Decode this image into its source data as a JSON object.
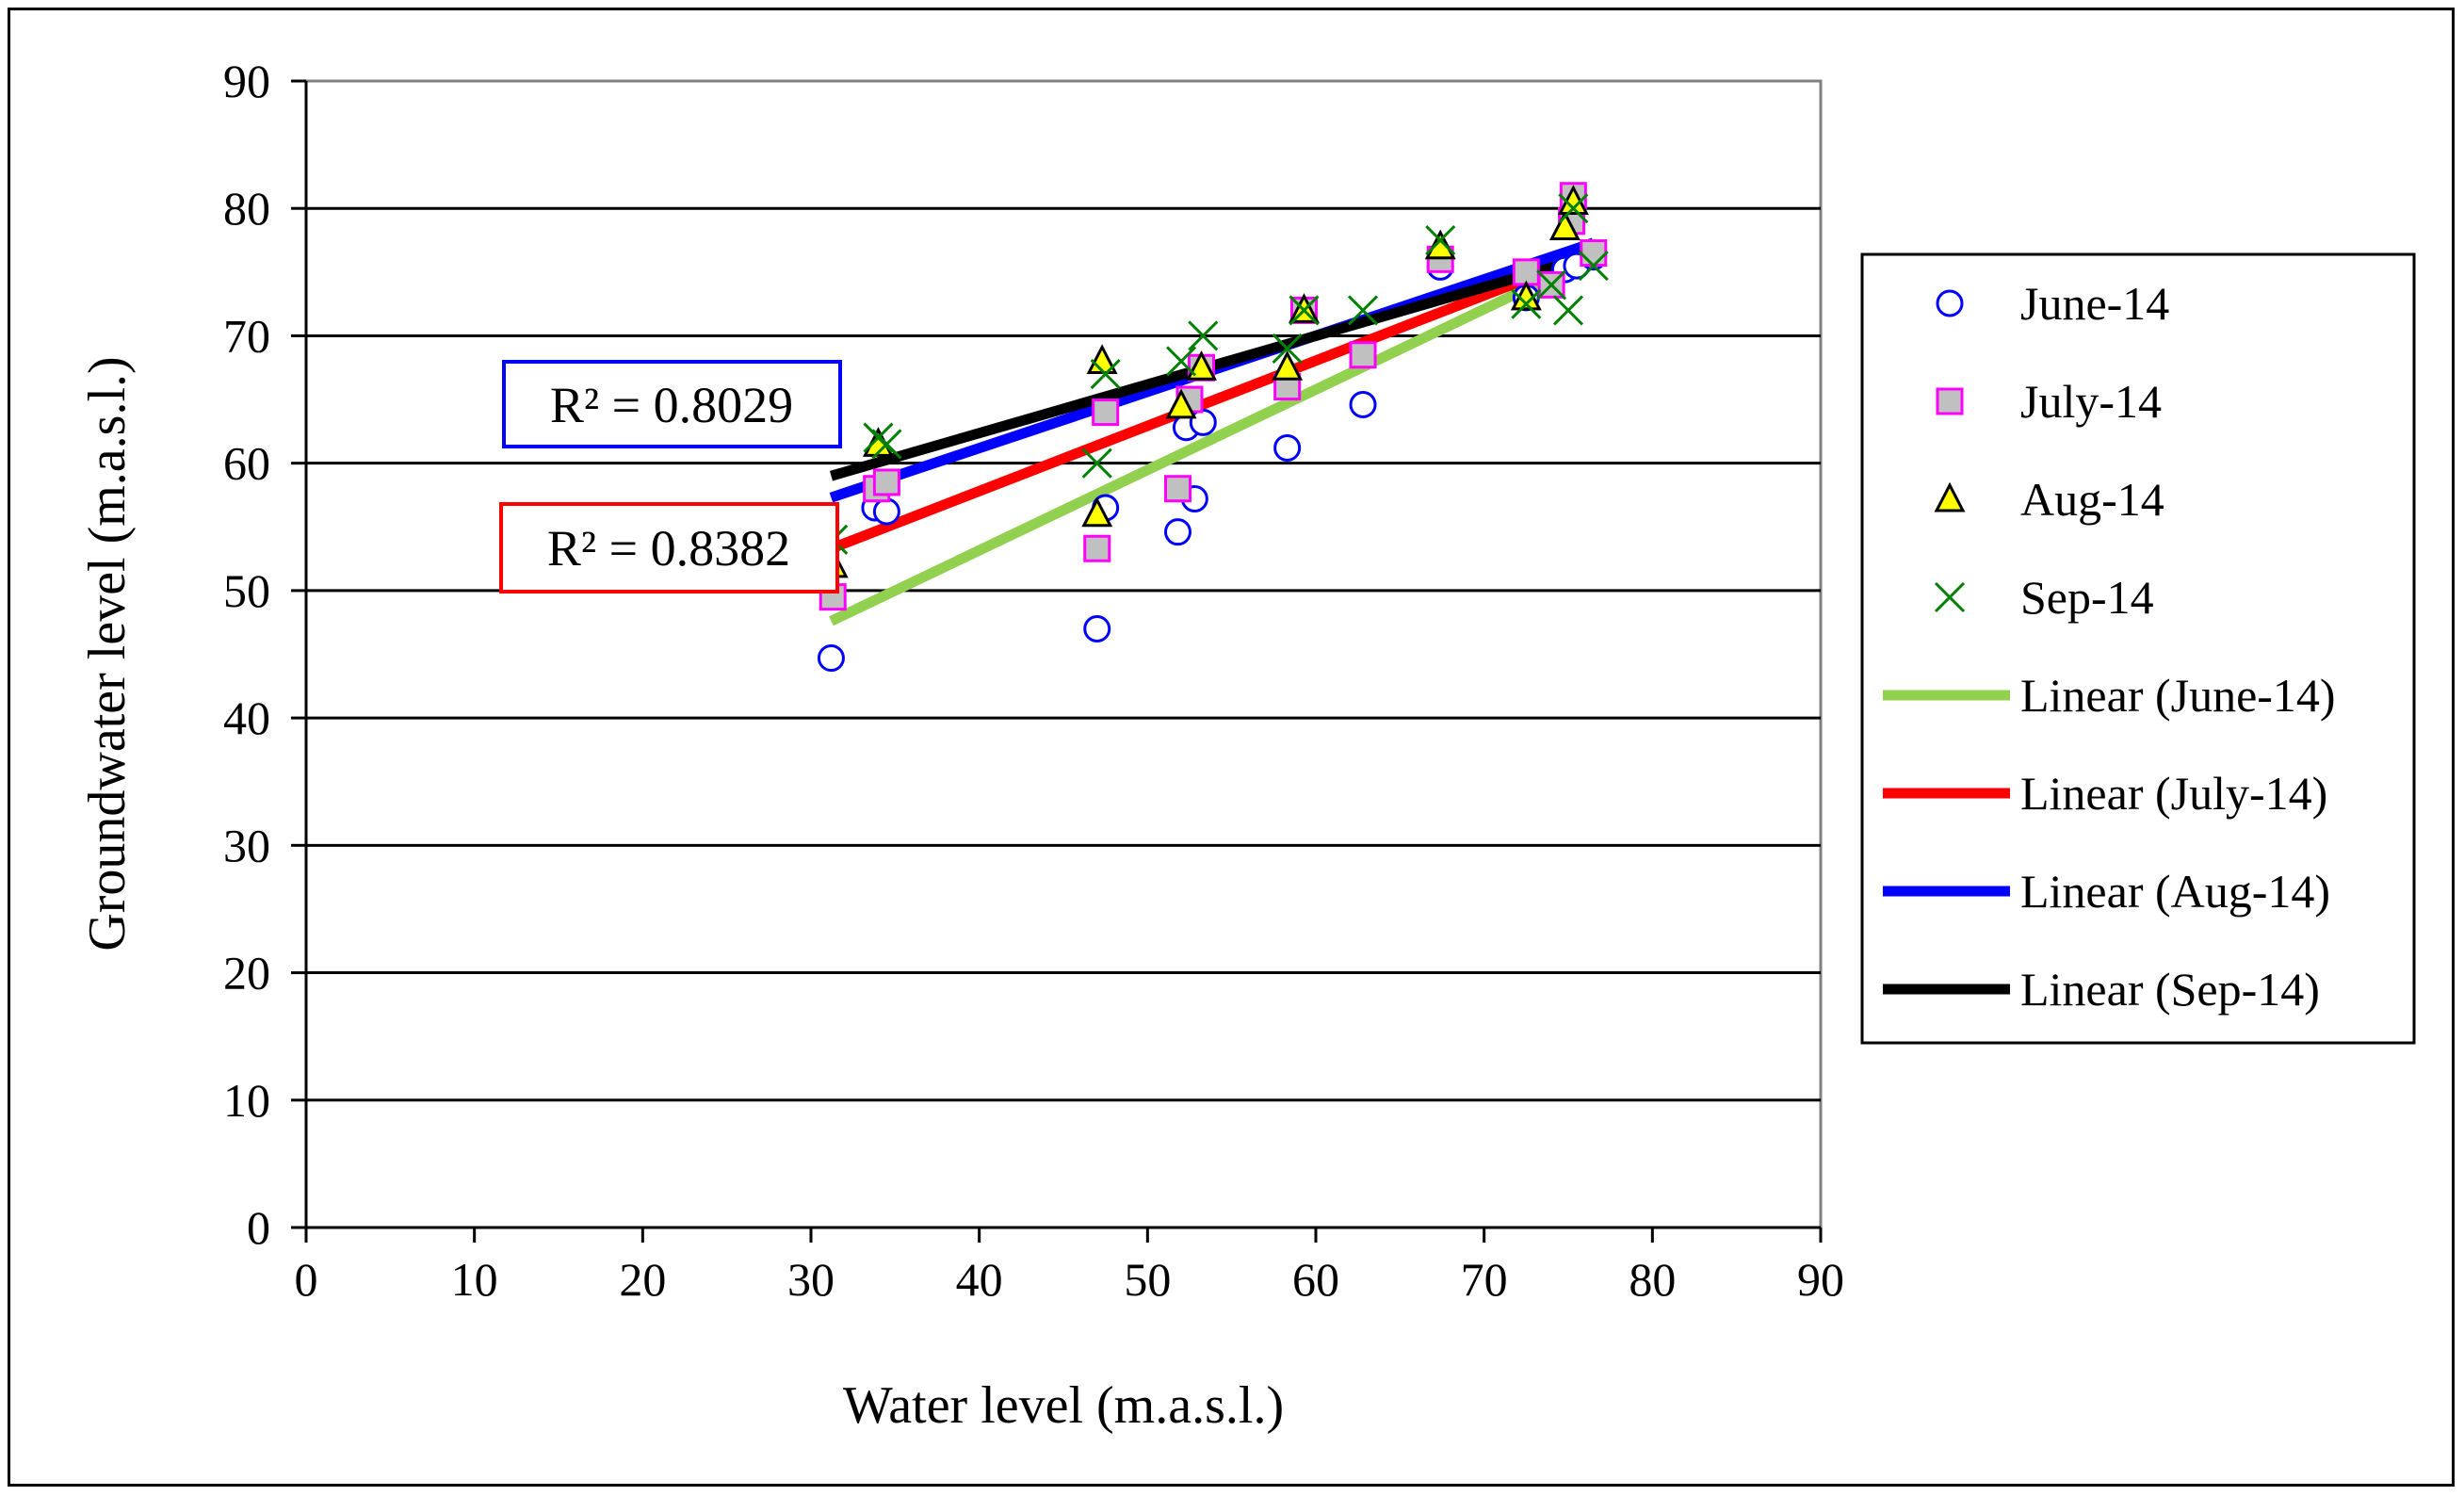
{
  "chart_data": {
    "type": "scatter",
    "title": "",
    "xlabel": "Water level (m.a.s.l.)",
    "ylabel": "Groundwater level (m.a.s.l.)",
    "xlim": [
      0,
      90
    ],
    "ylim": [
      0,
      90
    ],
    "x_ticks": [
      0,
      10,
      20,
      30,
      40,
      50,
      60,
      70,
      80,
      90
    ],
    "y_ticks": [
      0,
      10,
      20,
      30,
      40,
      50,
      60,
      70,
      80,
      90
    ],
    "grid": "horizontal",
    "legend_position": "right",
    "series": [
      {
        "name": "June-14",
        "marker": "circle",
        "color": "#0000ff",
        "points": [
          [
            31.2,
            44.7
          ],
          [
            33.8,
            56.5
          ],
          [
            34.5,
            56.2
          ],
          [
            47.0,
            47.0
          ],
          [
            47.5,
            56.5
          ],
          [
            51.8,
            54.6
          ],
          [
            52.3,
            62.8
          ],
          [
            52.8,
            57.2
          ],
          [
            53.3,
            63.2
          ],
          [
            58.3,
            61.2
          ],
          [
            62.8,
            64.6
          ],
          [
            67.4,
            75.4
          ],
          [
            72.5,
            73.0
          ],
          [
            74.8,
            75.2
          ],
          [
            75.5,
            75.5
          ],
          [
            76.5,
            76.2
          ]
        ]
      },
      {
        "name": "July-14",
        "marker": "square",
        "color": "#ff00ff",
        "fill": "#c0c0c0",
        "points": [
          [
            31.3,
            49.5
          ],
          [
            33.9,
            58.0
          ],
          [
            34.5,
            58.5
          ],
          [
            47.0,
            53.3
          ],
          [
            47.5,
            64.0
          ],
          [
            51.8,
            58.0
          ],
          [
            52.5,
            65.0
          ],
          [
            53.2,
            67.5
          ],
          [
            58.3,
            66.0
          ],
          [
            59.3,
            72.0
          ],
          [
            62.8,
            68.5
          ],
          [
            67.4,
            76.0
          ],
          [
            72.5,
            75.0
          ],
          [
            74.0,
            74.0
          ],
          [
            75.2,
            79.0
          ],
          [
            75.3,
            81.0
          ],
          [
            76.5,
            76.5
          ]
        ]
      },
      {
        "name": "Aug-14",
        "marker": "triangle",
        "color": "#000000",
        "fill": "#ffff00",
        "points": [
          [
            31.3,
            52.0
          ],
          [
            34.0,
            61.5
          ],
          [
            47.0,
            56.0
          ],
          [
            47.3,
            68.0
          ],
          [
            52.0,
            64.5
          ],
          [
            53.2,
            67.5
          ],
          [
            58.3,
            67.5
          ],
          [
            59.3,
            72.0
          ],
          [
            67.4,
            77.0
          ],
          [
            72.5,
            73.0
          ],
          [
            74.8,
            78.5
          ],
          [
            75.3,
            80.5
          ]
        ]
      },
      {
        "name": "Sep-14",
        "marker": "x",
        "color": "#008000",
        "points": [
          [
            31.3,
            54.0
          ],
          [
            34.0,
            62.0
          ],
          [
            34.5,
            61.5
          ],
          [
            47.0,
            60.0
          ],
          [
            47.5,
            67.0
          ],
          [
            52.0,
            68.0
          ],
          [
            53.3,
            70.0
          ],
          [
            58.3,
            69.0
          ],
          [
            59.3,
            72.0
          ],
          [
            62.8,
            72.0
          ],
          [
            67.4,
            77.5
          ],
          [
            72.5,
            72.5
          ],
          [
            74.0,
            74.0
          ],
          [
            75.0,
            72.0
          ],
          [
            75.3,
            80.0
          ],
          [
            76.5,
            75.5
          ]
        ]
      }
    ],
    "trendlines": [
      {
        "name": "Linear (June-14)",
        "color": "#92d050",
        "x": [
          31.2,
          76.5
        ],
        "y": [
          47.6,
          76.2
        ]
      },
      {
        "name": "Linear (July-14)",
        "color": "#ff0000",
        "x": [
          31.2,
          76.5
        ],
        "y": [
          53.3,
          76.5
        ]
      },
      {
        "name": "Linear (Aug-14)",
        "color": "#0000ff",
        "x": [
          31.2,
          76.5
        ],
        "y": [
          57.3,
          77.3
        ]
      },
      {
        "name": "Linear (Sep-14)",
        "color": "#000000",
        "x": [
          31.2,
          76.5
        ],
        "y": [
          59.0,
          76.3
        ]
      }
    ],
    "annotations": [
      {
        "text": "R² = 0.8029",
        "border_color": "#0000ff"
      },
      {
        "text": "R² = 0.8382",
        "border_color": "#ff0000"
      }
    ]
  }
}
